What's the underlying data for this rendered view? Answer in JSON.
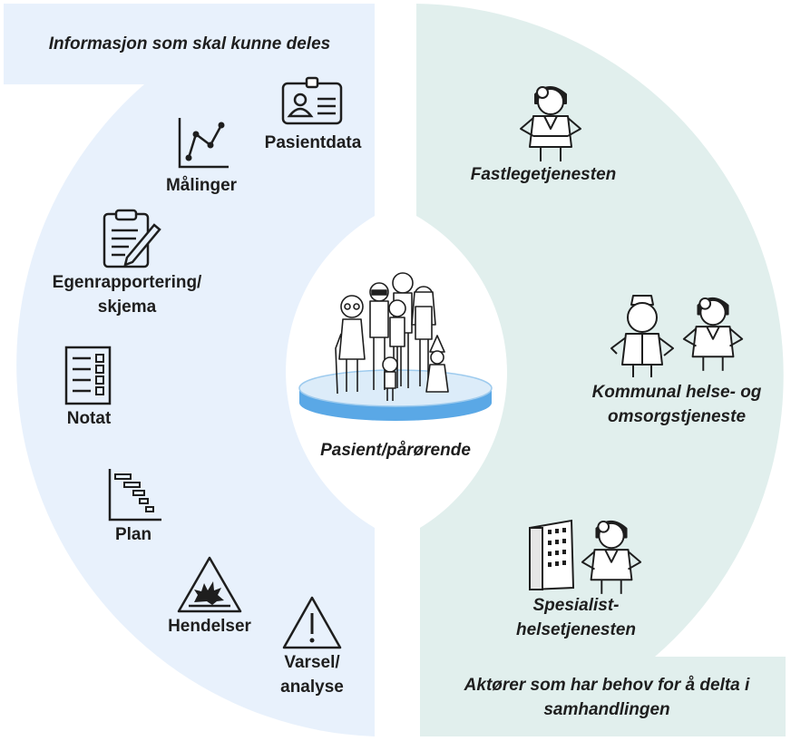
{
  "left_header": "Informasjon som skal kunne deles",
  "right_footer": [
    "Aktører som har behov for å delta i",
    "samhandlingen"
  ],
  "center_label": "Pasient/pårørende",
  "info_items": {
    "pasientdata": "Pasientdata",
    "malinger": "Målinger",
    "egenrapportering": [
      "Egenrapportering/",
      "skjema"
    ],
    "notat": "Notat",
    "plan": "Plan",
    "hendelser": "Hendelser",
    "varsel": [
      "Varsel/",
      "analyse"
    ]
  },
  "actors": {
    "fastlege": "Fastlegetjenesten",
    "kommunal": [
      "Kommunal helse- og",
      "omsorgstjeneste"
    ],
    "spesialist": [
      "Spesialist-",
      "helsetjenesten"
    ]
  },
  "colors": {
    "left_panel": "#e8f1fc",
    "right_panel": "#e1efed",
    "platform_top": "#dcecf9",
    "platform_side": "#5aa8e6"
  },
  "icons": [
    "id-card-icon",
    "line-chart-icon",
    "clipboard-pencil-icon",
    "checklist-icon",
    "gantt-chart-icon",
    "explosion-warning-icon",
    "warning-triangle-icon",
    "doctor-icon",
    "nurse-icon",
    "hospital-building-icon",
    "patient-group-icon"
  ]
}
